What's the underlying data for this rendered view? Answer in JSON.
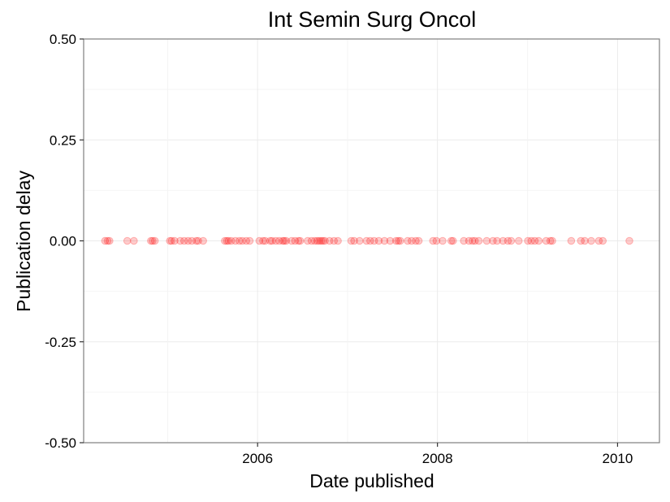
{
  "chart_data": {
    "type": "scatter",
    "title": "Int Semin Surg Oncol",
    "xlabel": "Date published",
    "ylabel": "Publication delay",
    "xlim": [
      "2004-01-26",
      "2010-06-20"
    ],
    "ylim": [
      -0.5,
      0.5
    ],
    "x_ticks": [
      "2006",
      "2008",
      "2010"
    ],
    "y_ticks": [
      "0.50",
      "0.25",
      "0.00",
      "-0.25",
      "-0.50"
    ],
    "grid": true,
    "point_color": "#ff0000",
    "series": [
      {
        "x": [
          "2004-04-22",
          "2004-05-02",
          "2004-05-10",
          "2004-07-21",
          "2004-08-17",
          "2004-10-25",
          "2004-11-01",
          "2004-11-10",
          "2005-01-10",
          "2005-01-17",
          "2005-01-29",
          "2005-02-21",
          "2005-03-09",
          "2005-03-25",
          "2005-04-09",
          "2005-04-27",
          "2005-05-05",
          "2005-05-25",
          "2005-08-21",
          "2005-08-29",
          "2005-09-05",
          "2005-09-16",
          "2005-10-03",
          "2005-10-19",
          "2005-10-31",
          "2005-11-16",
          "2005-11-30",
          "2006-01-08",
          "2006-01-23",
          "2006-02-01",
          "2006-02-21",
          "2006-03-01",
          "2006-03-16",
          "2006-03-30",
          "2006-04-13",
          "2006-04-19",
          "2006-04-27",
          "2006-05-19",
          "2006-06-02",
          "2006-06-16",
          "2006-06-23",
          "2006-07-23",
          "2006-08-08",
          "2006-08-21",
          "2006-08-31",
          "2006-09-08",
          "2006-09-16",
          "2006-09-23",
          "2006-10-01",
          "2006-10-20",
          "2006-11-07",
          "2006-11-23",
          "2007-01-16",
          "2007-01-28",
          "2007-02-19",
          "2007-03-19",
          "2007-04-03",
          "2007-04-19",
          "2007-05-08",
          "2007-05-31",
          "2007-06-23",
          "2007-07-17",
          "2007-07-26",
          "2007-08-03",
          "2007-09-02",
          "2007-09-18",
          "2007-10-05",
          "2007-10-17",
          "2007-12-14",
          "2007-12-28",
          "2008-01-22",
          "2008-02-26",
          "2008-03-04",
          "2008-04-17",
          "2008-05-08",
          "2008-05-22",
          "2008-06-01",
          "2008-06-17",
          "2008-07-19",
          "2008-08-13",
          "2008-08-30",
          "2008-09-23",
          "2008-10-13",
          "2008-10-26",
          "2008-11-26",
          "2009-01-02",
          "2009-01-16",
          "2009-01-30",
          "2009-02-15",
          "2009-03-17",
          "2009-04-03",
          "2009-04-11",
          "2009-06-27",
          "2009-08-05",
          "2009-08-21",
          "2009-09-16",
          "2009-10-17",
          "2009-11-02",
          "2010-02-18"
        ],
        "y": [
          0,
          0,
          0,
          0,
          0,
          0,
          0,
          0,
          0,
          0,
          0,
          0,
          0,
          0,
          0,
          0,
          0,
          0,
          0,
          0,
          0,
          0,
          0,
          0,
          0,
          0,
          0,
          0,
          0,
          0,
          0,
          0,
          0,
          0,
          0,
          0,
          0,
          0,
          0,
          0,
          0,
          0,
          0,
          0,
          0,
          0,
          0,
          0,
          0,
          0,
          0,
          0,
          0,
          0,
          0,
          0,
          0,
          0,
          0,
          0,
          0,
          0,
          0,
          0,
          0,
          0,
          0,
          0,
          0,
          0,
          0,
          0,
          0,
          0,
          0,
          0,
          0,
          0,
          0,
          0,
          0,
          0,
          0,
          0,
          0,
          0,
          0,
          0,
          0,
          0,
          0,
          0,
          0,
          0,
          0,
          0,
          0,
          0,
          0
        ]
      }
    ]
  }
}
